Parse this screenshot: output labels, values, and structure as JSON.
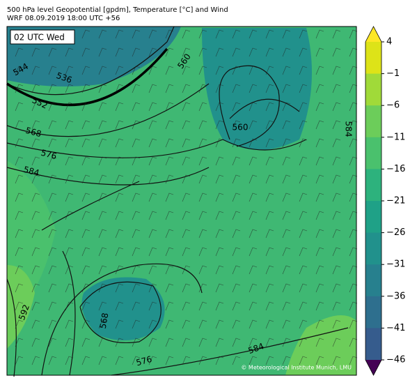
{
  "header": {
    "line1": "500 hPa level Geopotential [gpdm], Temperature [°C] and Wind",
    "line2": "WRF 08.09.2019 18:00 UTC +56"
  },
  "map": {
    "time_label": "02 UTC Wed",
    "credit": "© Meteorological Institute Munich, LMU",
    "contour_labels": [
      "544",
      "536",
      "552",
      "560",
      "560",
      "568",
      "576",
      "584",
      "584",
      "592",
      "568",
      "576",
      "584"
    ]
  },
  "colorbar": {
    "ticks": [
      "4",
      "−1",
      "−6",
      "−11",
      "−16",
      "−21",
      "−26",
      "−31",
      "−36",
      "−41",
      "−46"
    ],
    "colors": [
      "#dde318",
      "#a0da39",
      "#6ccd5a",
      "#4ac16d",
      "#2db27d",
      "#1fa187",
      "#21918c",
      "#27808e",
      "#2e6f8e",
      "#365c8d",
      "#424086",
      "#482475",
      "#440154",
      "#fde725"
    ]
  }
}
